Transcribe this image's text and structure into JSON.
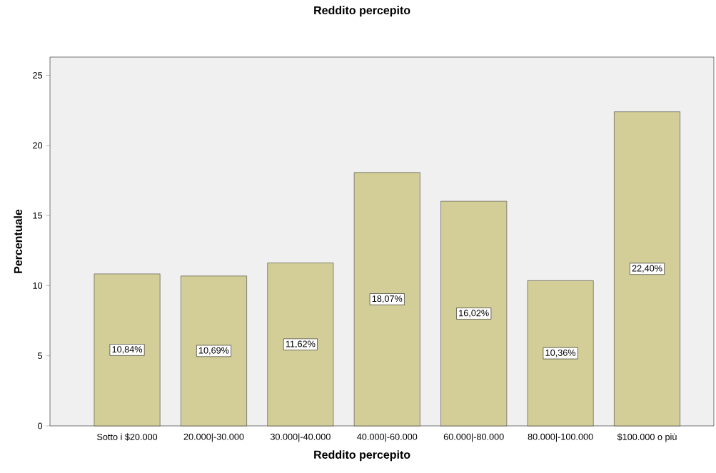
{
  "chart_data": {
    "type": "bar",
    "title": "Reddito percepito",
    "xlabel": "Reddito percepito",
    "ylabel": "Percentuale",
    "categories": [
      "Sotto i $20.000",
      "20.000|-30.000",
      "30.000|-40.000",
      "40.000|-60.000",
      "60.000|-80.000",
      "80.000|-100.000",
      "$100.000 o più"
    ],
    "values": [
      10.84,
      10.69,
      11.62,
      18.07,
      16.02,
      10.36,
      22.4
    ],
    "value_labels": [
      "10,84%",
      "10,69%",
      "11,62%",
      "18,07%",
      "16,02%",
      "10,36%",
      "22,40%"
    ],
    "color": "#d3ce97",
    "ylim": [
      0,
      26.3
    ],
    "yticks": [
      0,
      5,
      10,
      15,
      20,
      25
    ],
    "grid": false
  }
}
